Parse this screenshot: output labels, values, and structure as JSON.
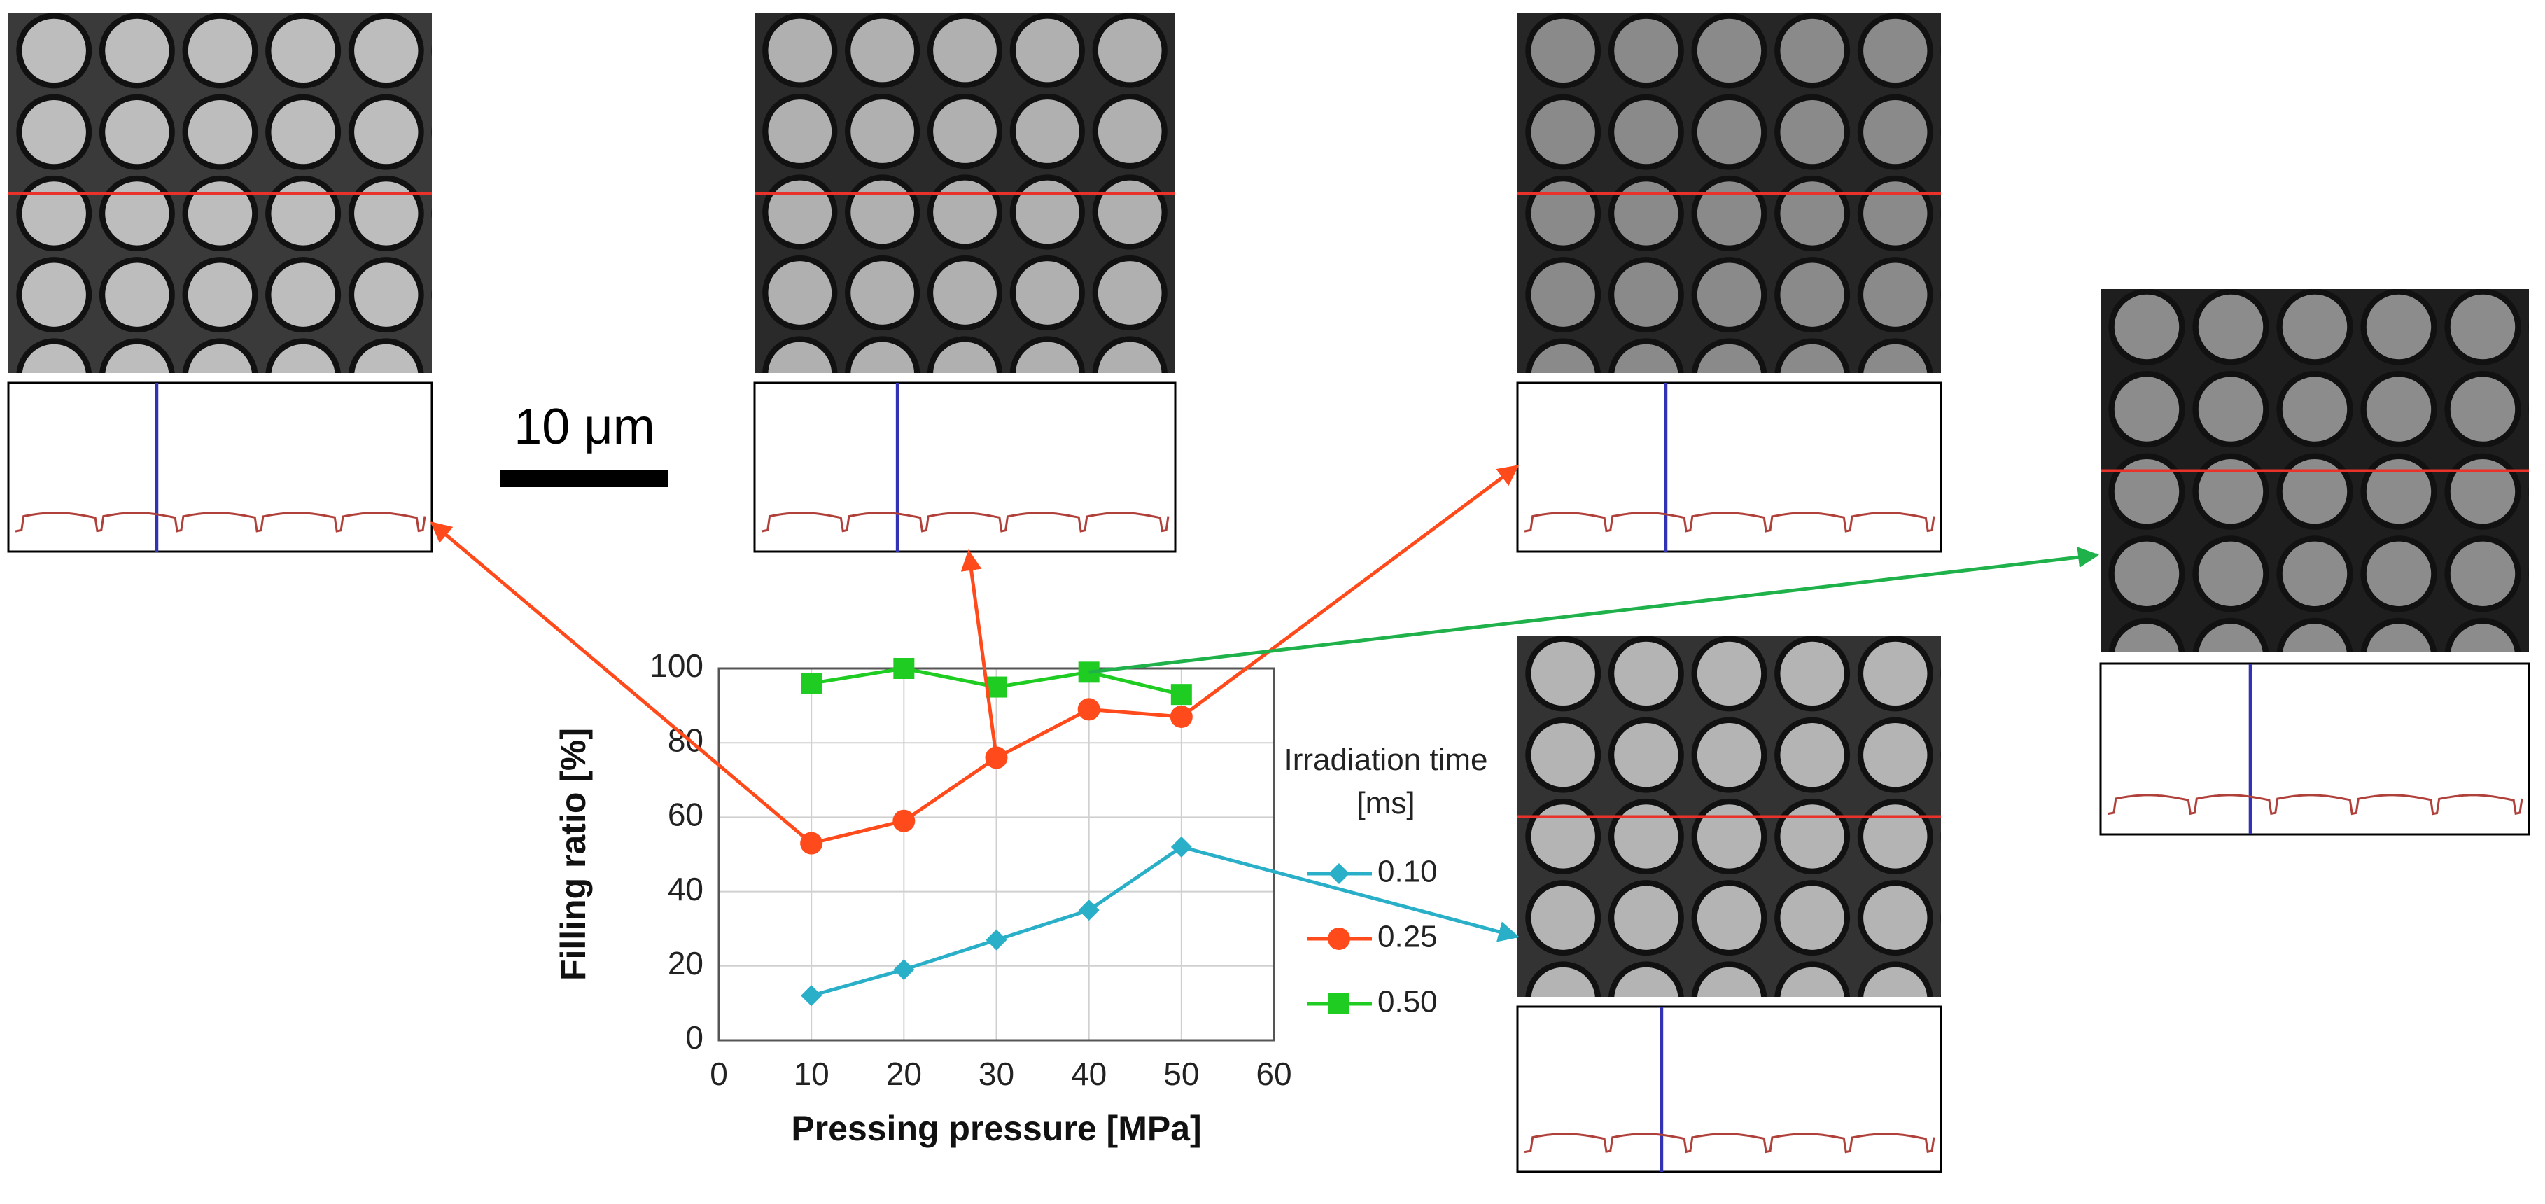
{
  "chart_data": {
    "type": "line",
    "x_label": "Pressing pressure [MPa]",
    "y_label": "Filling ratio [%]",
    "legend_title": "Irradiation time [ms]",
    "annotations": [
      "10 μm"
    ],
    "x": [
      10,
      20,
      30,
      40,
      50
    ],
    "series": [
      {
        "name": "0.10",
        "color": "#2aafc9",
        "marker": "diamond",
        "values": [
          12,
          19,
          27,
          35,
          52
        ]
      },
      {
        "name": "0.25",
        "color": "#ff4a1c",
        "marker": "circle",
        "values": [
          53,
          59,
          76,
          89,
          87
        ]
      },
      {
        "name": "0.50",
        "color": "#1fcc22",
        "marker": "square",
        "values": [
          96,
          100,
          95,
          99,
          93
        ]
      }
    ],
    "xlim": [
      0,
      60
    ],
    "xticks": [
      0,
      10,
      20,
      30,
      40,
      50,
      60
    ],
    "ylim": [
      0,
      100
    ],
    "yticks": [
      0,
      20,
      40,
      60,
      80,
      100
    ],
    "grid": true
  }
}
